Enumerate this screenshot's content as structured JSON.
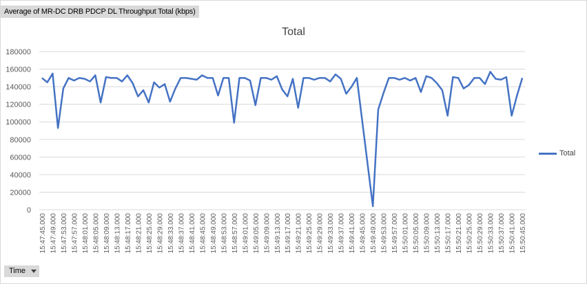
{
  "field_button": {
    "label": "Average of MR-DC DRB PDCP DL  Throughput Total (kbps)"
  },
  "axis_button": {
    "label": "Time"
  },
  "colors": {
    "series": "#4472c4",
    "grid": "#d9d9d9",
    "text": "#595959"
  },
  "icons": {
    "axis_dropdown": "chevron-down-icon"
  },
  "chart_data": {
    "type": "line",
    "title": "Total",
    "xlabel": "",
    "ylabel": "",
    "ylim": [
      0,
      180000
    ],
    "yticks": [
      0,
      20000,
      40000,
      60000,
      80000,
      100000,
      120000,
      140000,
      160000,
      180000
    ],
    "grid": true,
    "legend_position": "right",
    "x": [
      "15:47:45.000",
      "15:47:47.000",
      "15:47:49.000",
      "15:47:51.000",
      "15:47:53.000",
      "15:47:55.000",
      "15:47:57.000",
      "15:47:59.000",
      "15:48:01.000",
      "15:48:03.000",
      "15:48:05.000",
      "15:48:07.000",
      "15:48:09.000",
      "15:48:11.000",
      "15:48:13.000",
      "15:48:15.000",
      "15:48:17.000",
      "15:48:19.000",
      "15:48:21.000",
      "15:48:23.000",
      "15:48:25.000",
      "15:48:27.000",
      "15:48:29.000",
      "15:48:31.000",
      "15:48:33.000",
      "15:48:35.000",
      "15:48:37.000",
      "15:48:39.000",
      "15:48:41.000",
      "15:48:43.000",
      "15:48:45.000",
      "15:48:47.000",
      "15:48:49.000",
      "15:48:51.000",
      "15:48:53.000",
      "15:48:55.000",
      "15:48:57.000",
      "15:48:59.000",
      "15:49:01.000",
      "15:49:03.000",
      "15:49:05.000",
      "15:49:07.000",
      "15:49:09.000",
      "15:49:11.000",
      "15:49:13.000",
      "15:49:15.000",
      "15:49:17.000",
      "15:49:19.000",
      "15:49:21.000",
      "15:49:23.000",
      "15:49:25.000",
      "15:49:27.000",
      "15:49:29.000",
      "15:49:31.000",
      "15:49:33.000",
      "15:49:35.000",
      "15:49:37.000",
      "15:49:39.000",
      "15:49:41.000",
      "15:49:43.000",
      "15:49:45.000",
      "15:49:47.000",
      "15:49:49.000",
      "15:49:51.000",
      "15:49:53.000",
      "15:49:55.000",
      "15:49:57.000",
      "15:49:59.000",
      "15:50:01.000",
      "15:50:03.000",
      "15:50:05.000",
      "15:50:07.000",
      "15:50:09.000",
      "15:50:11.000",
      "15:50:13.000",
      "15:50:15.000",
      "15:50:17.000",
      "15:50:19.000",
      "15:50:21.000",
      "15:50:23.000",
      "15:50:25.000",
      "15:50:27.000",
      "15:50:29.000",
      "15:50:31.000",
      "15:50:33.000",
      "15:50:35.000",
      "15:50:37.000",
      "15:50:39.000",
      "15:50:41.000",
      "15:50:43.000",
      "15:50:45.000"
    ],
    "series": [
      {
        "name": "Total",
        "values": [
          150000,
          145000,
          155000,
          93000,
          138000,
          150000,
          147000,
          150000,
          149000,
          146000,
          153000,
          122000,
          151000,
          150000,
          150000,
          146000,
          153000,
          144000,
          129000,
          136000,
          122000,
          145000,
          139000,
          143000,
          123000,
          138000,
          150000,
          150000,
          149000,
          148000,
          153000,
          150000,
          150000,
          130000,
          150000,
          150000,
          99000,
          150000,
          150000,
          147000,
          119000,
          150000,
          150000,
          148000,
          152000,
          137000,
          129000,
          149000,
          116000,
          150000,
          150000,
          148000,
          150000,
          150000,
          146000,
          154000,
          149000,
          132000,
          140000,
          150000,
          null,
          null,
          4000,
          114000,
          133000,
          150000,
          150000,
          148000,
          150000,
          147000,
          150000,
          134000,
          152000,
          150000,
          144000,
          136000,
          107000,
          151000,
          150000,
          138000,
          142000,
          150000,
          150000,
          143000,
          157000,
          149000,
          148000,
          151000,
          107000,
          130000,
          150000
        ]
      }
    ],
    "xtick_labels": [
      "15:47:45.000",
      "15:47:49.000",
      "15:47:53.000",
      "15:47:57.000",
      "15:48:01.000",
      "15:48:05.000",
      "15:48:09.000",
      "15:48:13.000",
      "15:48:17.000",
      "15:48:21.000",
      "15:48:25.000",
      "15:48:29.000",
      "15:48:33.000",
      "15:48:37.000",
      "15:48:41.000",
      "15:48:45.000",
      "15:48:49.000",
      "15:48:53.000",
      "15:48:57.000",
      "15:49:01.000",
      "15:49:05.000",
      "15:49:09.000",
      "15:49:13.000",
      "15:49:17.000",
      "15:49:21.000",
      "15:49:25.000",
      "15:49:29.000",
      "15:49:33.000",
      "15:49:37.000",
      "15:49:41.000",
      "15:49:45.000",
      "15:49:49.000",
      "15:49:53.000",
      "15:49:57.000",
      "15:50:01.000",
      "15:50:05.000",
      "15:50:09.000",
      "15:50:13.000",
      "15:50:17.000",
      "15:50:21.000",
      "15:50:25.000",
      "15:50:29.000",
      "15:50:33.000",
      "15:50:37.000",
      "15:50:41.000",
      "15:50:45.000"
    ]
  }
}
